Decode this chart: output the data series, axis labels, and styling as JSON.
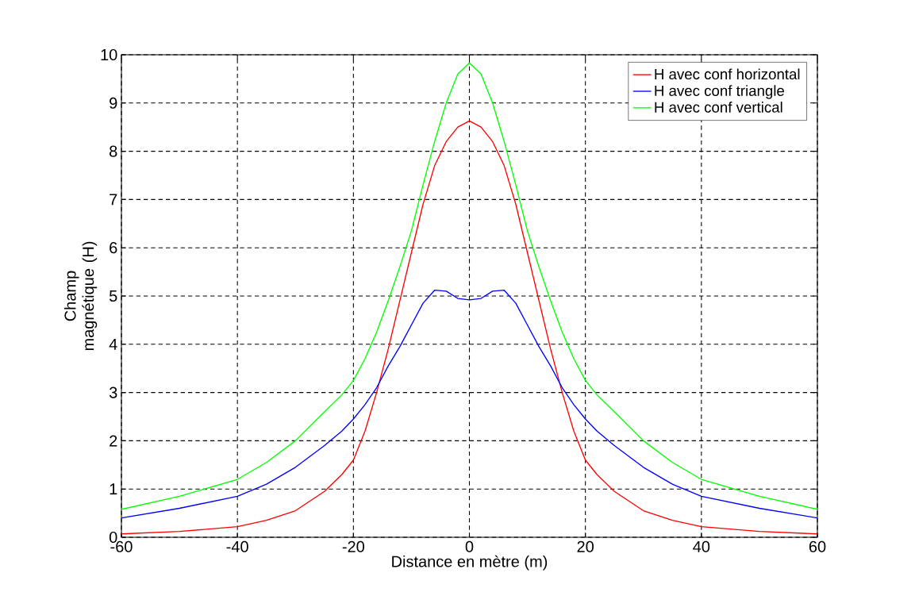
{
  "chart_data": {
    "type": "line",
    "xlabel": "Distance en mètre (m)",
    "ylabel": "Champ magnétique (H)",
    "x": [
      -60,
      -50,
      -40,
      -35,
      -30,
      -25,
      -22,
      -20,
      -18,
      -16,
      -14,
      -12,
      -10,
      -8,
      -6,
      -4,
      -2,
      0,
      2,
      4,
      6,
      8,
      10,
      12,
      14,
      16,
      18,
      20,
      22,
      25,
      30,
      35,
      40,
      50,
      60
    ],
    "series": [
      {
        "name": "H avec conf horizontal",
        "color": "#ff0000",
        "values": [
          0.07,
          0.12,
          0.22,
          0.35,
          0.55,
          0.95,
          1.3,
          1.6,
          2.2,
          3.0,
          3.9,
          4.9,
          5.9,
          6.9,
          7.7,
          8.2,
          8.5,
          8.63,
          8.5,
          8.2,
          7.7,
          6.9,
          5.9,
          4.9,
          3.9,
          3.0,
          2.2,
          1.6,
          1.3,
          0.95,
          0.55,
          0.35,
          0.22,
          0.12,
          0.07
        ]
      },
      {
        "name": "H avec conf triangle",
        "color": "#0000ff",
        "values": [
          0.4,
          0.6,
          0.85,
          1.1,
          1.45,
          1.9,
          2.2,
          2.45,
          2.75,
          3.1,
          3.55,
          3.95,
          4.4,
          4.85,
          5.12,
          5.1,
          4.95,
          4.92,
          4.95,
          5.1,
          5.12,
          4.85,
          4.4,
          3.95,
          3.55,
          3.1,
          2.75,
          2.45,
          2.2,
          1.9,
          1.45,
          1.1,
          0.85,
          0.6,
          0.4
        ]
      },
      {
        "name": "H avec conf vertical",
        "color": "#00ff00",
        "values": [
          0.58,
          0.85,
          1.2,
          1.55,
          2.0,
          2.6,
          2.95,
          3.25,
          3.7,
          4.25,
          4.9,
          5.6,
          6.35,
          7.3,
          8.2,
          9.0,
          9.6,
          9.83,
          9.6,
          9.0,
          8.2,
          7.3,
          6.35,
          5.6,
          4.9,
          4.25,
          3.7,
          3.25,
          2.95,
          2.6,
          2.0,
          1.55,
          1.2,
          0.85,
          0.58
        ]
      }
    ],
    "xlim": [
      -60,
      60
    ],
    "xticks": [
      -60,
      -40,
      -20,
      0,
      20,
      40,
      60
    ],
    "ylim": [
      0,
      10
    ],
    "yticks": [
      0,
      1,
      2,
      3,
      4,
      5,
      6,
      7,
      8,
      9,
      10
    ],
    "grid": true,
    "legend": "top right",
    "line_style": "solid",
    "marker": "none"
  }
}
